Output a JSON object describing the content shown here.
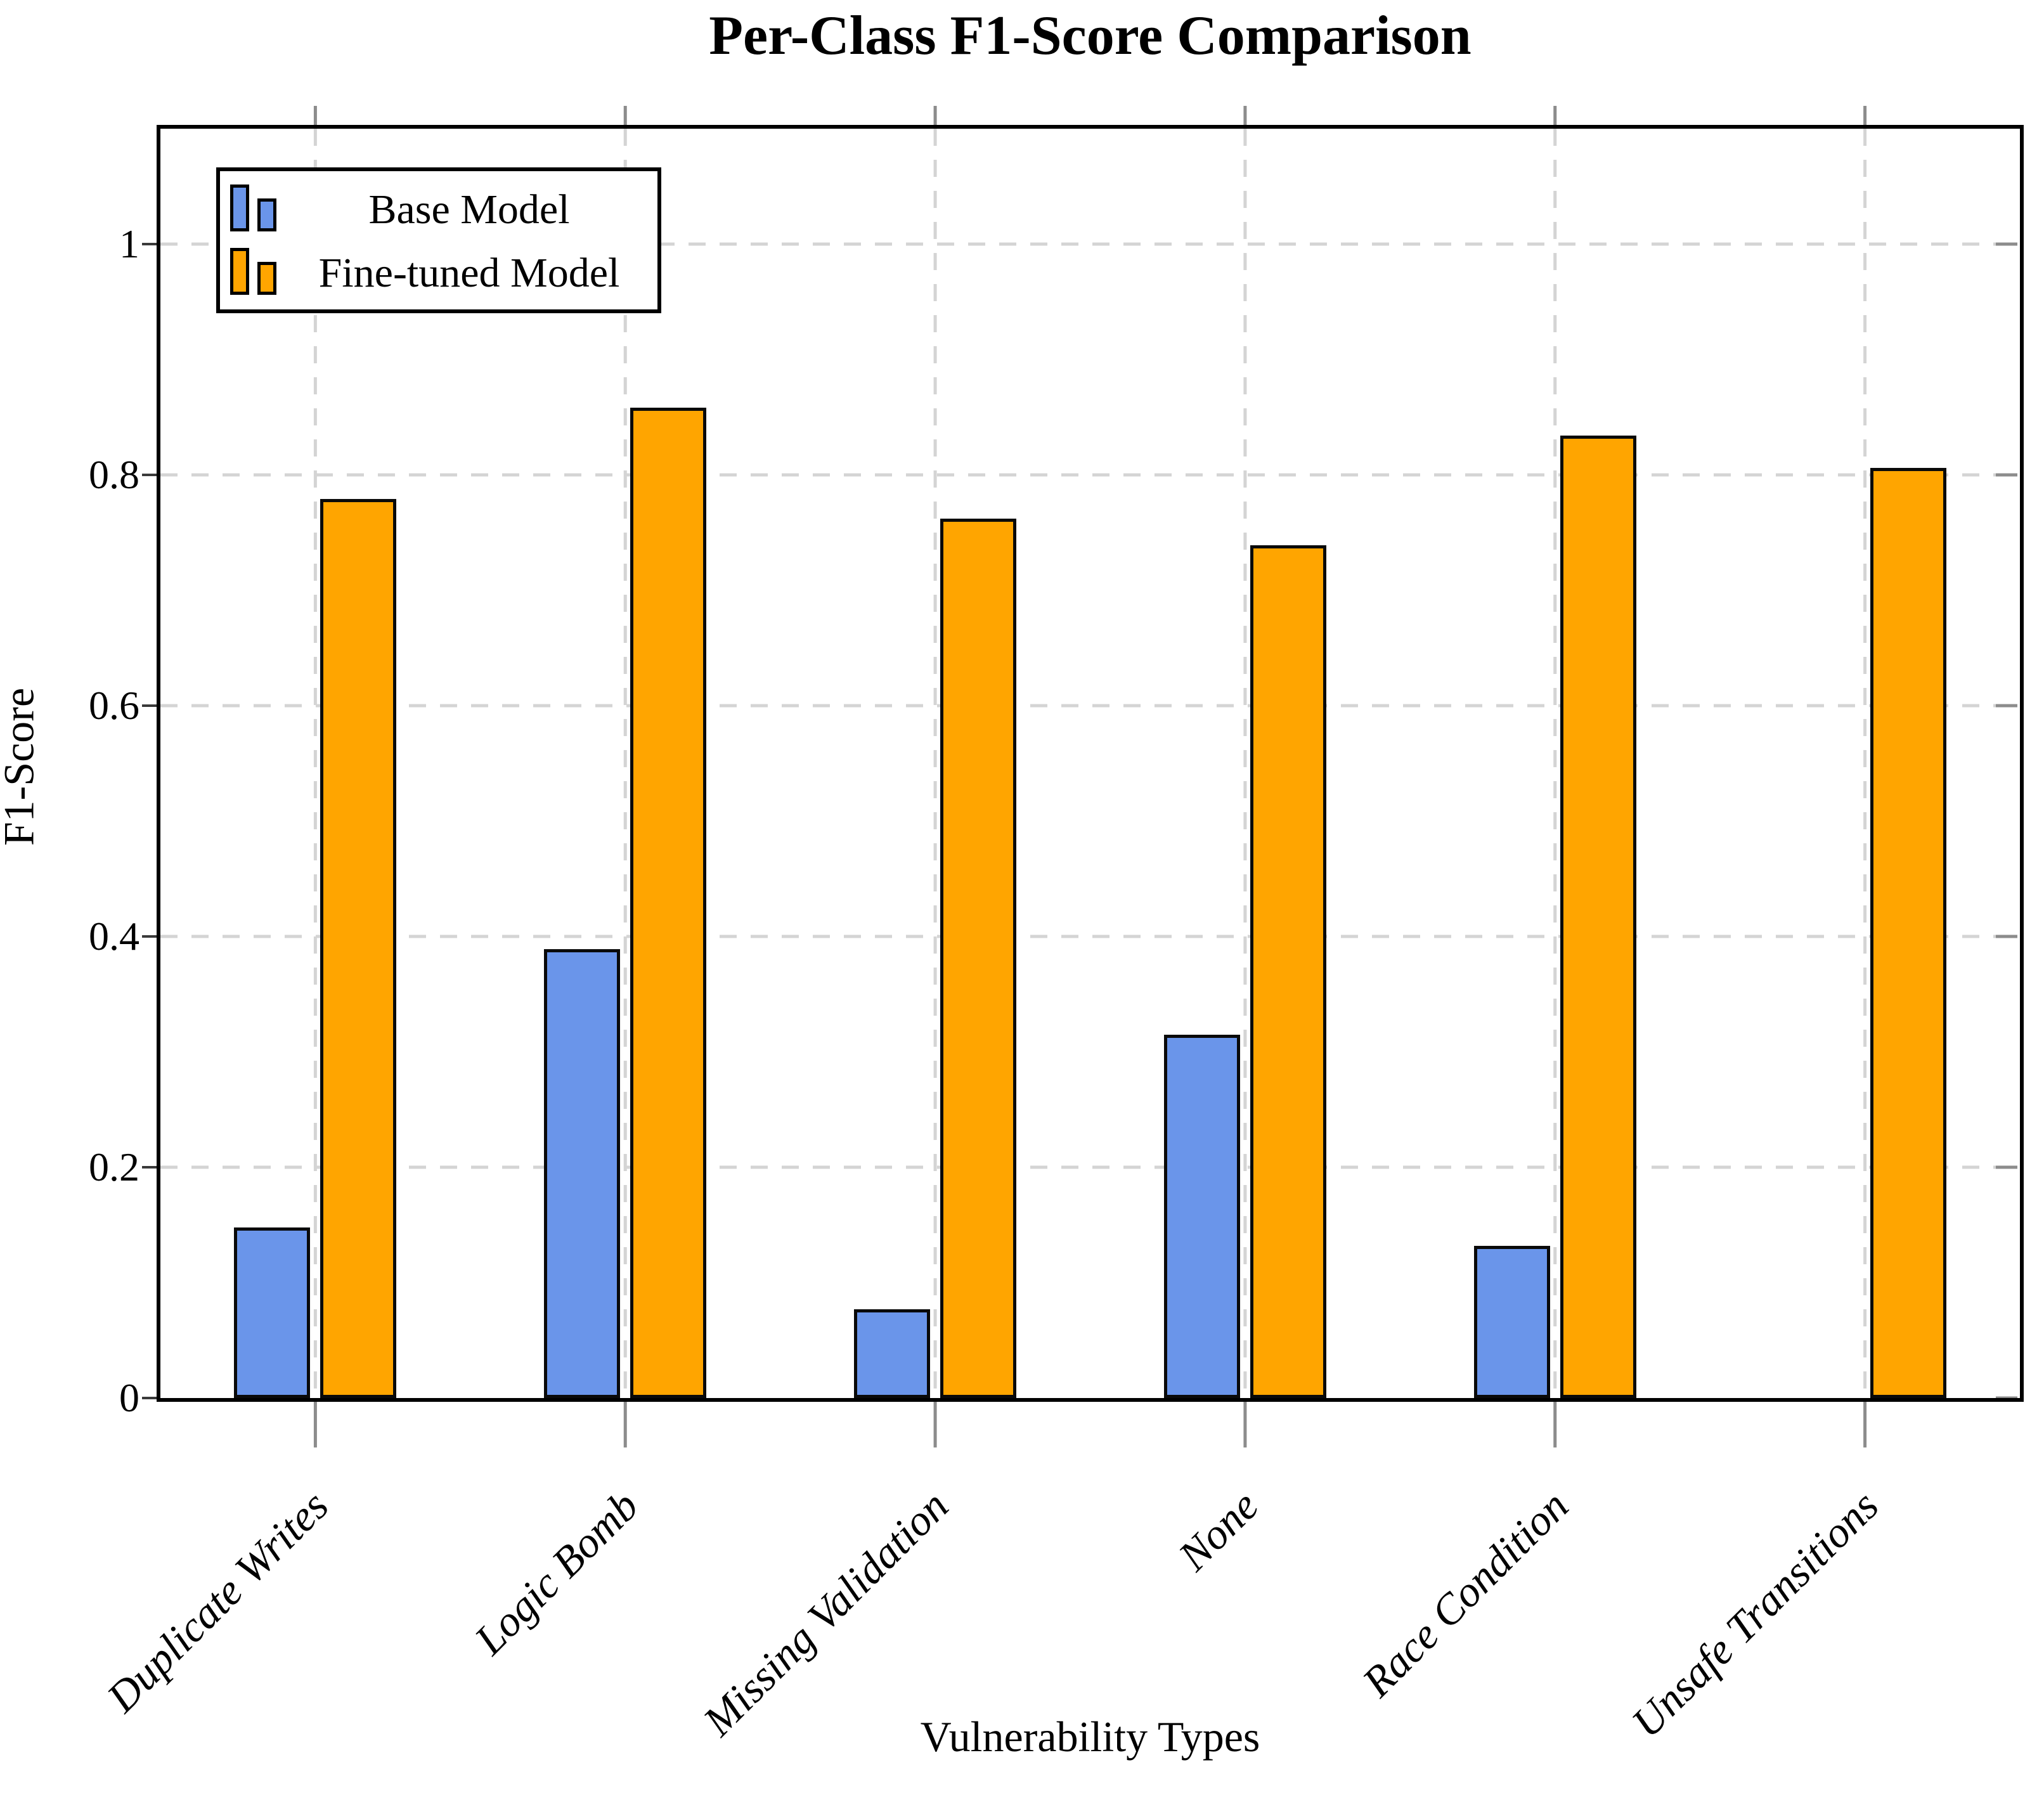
{
  "title": "Per-Class F1-Score Comparison",
  "chart_data": {
    "type": "bar",
    "title": "Per-Class F1-Score Comparison",
    "xlabel": "Vulnerability Types",
    "ylabel": "F1-Score",
    "categories": [
      "Duplicate Writes",
      "Logic Bomb",
      "Missing Validation",
      "None",
      "Race Condition",
      "Unsafe Transitions"
    ],
    "series": [
      {
        "name": "Base Model",
        "color": "#6A95EA",
        "values": [
          0.148,
          0.389,
          0.077,
          0.315,
          0.132,
          0.0
        ]
      },
      {
        "name": "Fine-tuned Model",
        "color": "#FFA500",
        "values": [
          0.779,
          0.858,
          0.762,
          0.739,
          0.834,
          0.806
        ]
      }
    ],
    "ylim": [
      0,
      1.1
    ],
    "yticks": [
      0,
      0.2,
      0.4,
      0.6,
      0.8,
      1
    ],
    "ytick_labels": [
      "0",
      "0.2",
      "0.4",
      "0.6",
      "0.8",
      "1"
    ],
    "grid": true,
    "grid_color": "#D4D4D4",
    "bar_edge_color": "#0a0a0a",
    "legend_position": "top-left"
  },
  "legend": {
    "entries": [
      {
        "label": "Base Model",
        "color": "#6A95EA"
      },
      {
        "label": "Fine-tuned Model",
        "color": "#FFA500"
      }
    ]
  }
}
